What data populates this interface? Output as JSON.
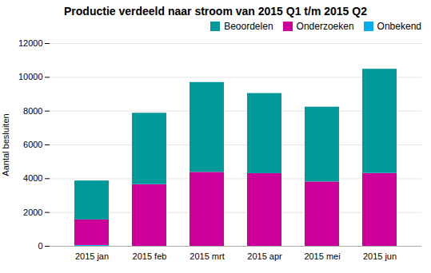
{
  "chart_data": {
    "type": "bar",
    "stacked": true,
    "title": "Productie verdeeld naar stroom van 2015 Q1 t/m 2015 Q2",
    "categories": [
      "2015 jan",
      "2015 feb",
      "2015 mrt",
      "2015 apr",
      "2015 mei",
      "2015 jun"
    ],
    "series": [
      {
        "name": "Onbekend",
        "color": "#00AEEF",
        "values": [
          51,
          0,
          0,
          0,
          0,
          0
        ]
      },
      {
        "name": "Onderzoeken",
        "color": "#CC0099",
        "values": [
          1514,
          3651,
          4376,
          4302,
          3807,
          4312
        ]
      },
      {
        "name": "Beoordelen",
        "color": "#009999",
        "values": [
          2301,
          4225,
          5319,
          4740,
          4429,
          6168
        ]
      }
    ],
    "ylabel": "Aantal besluiten",
    "ylim": [
      0,
      12000
    ],
    "yticks": [
      0,
      2000,
      4000,
      6000,
      8000,
      10000,
      12000
    ],
    "grid": true,
    "legend": "upper right"
  }
}
